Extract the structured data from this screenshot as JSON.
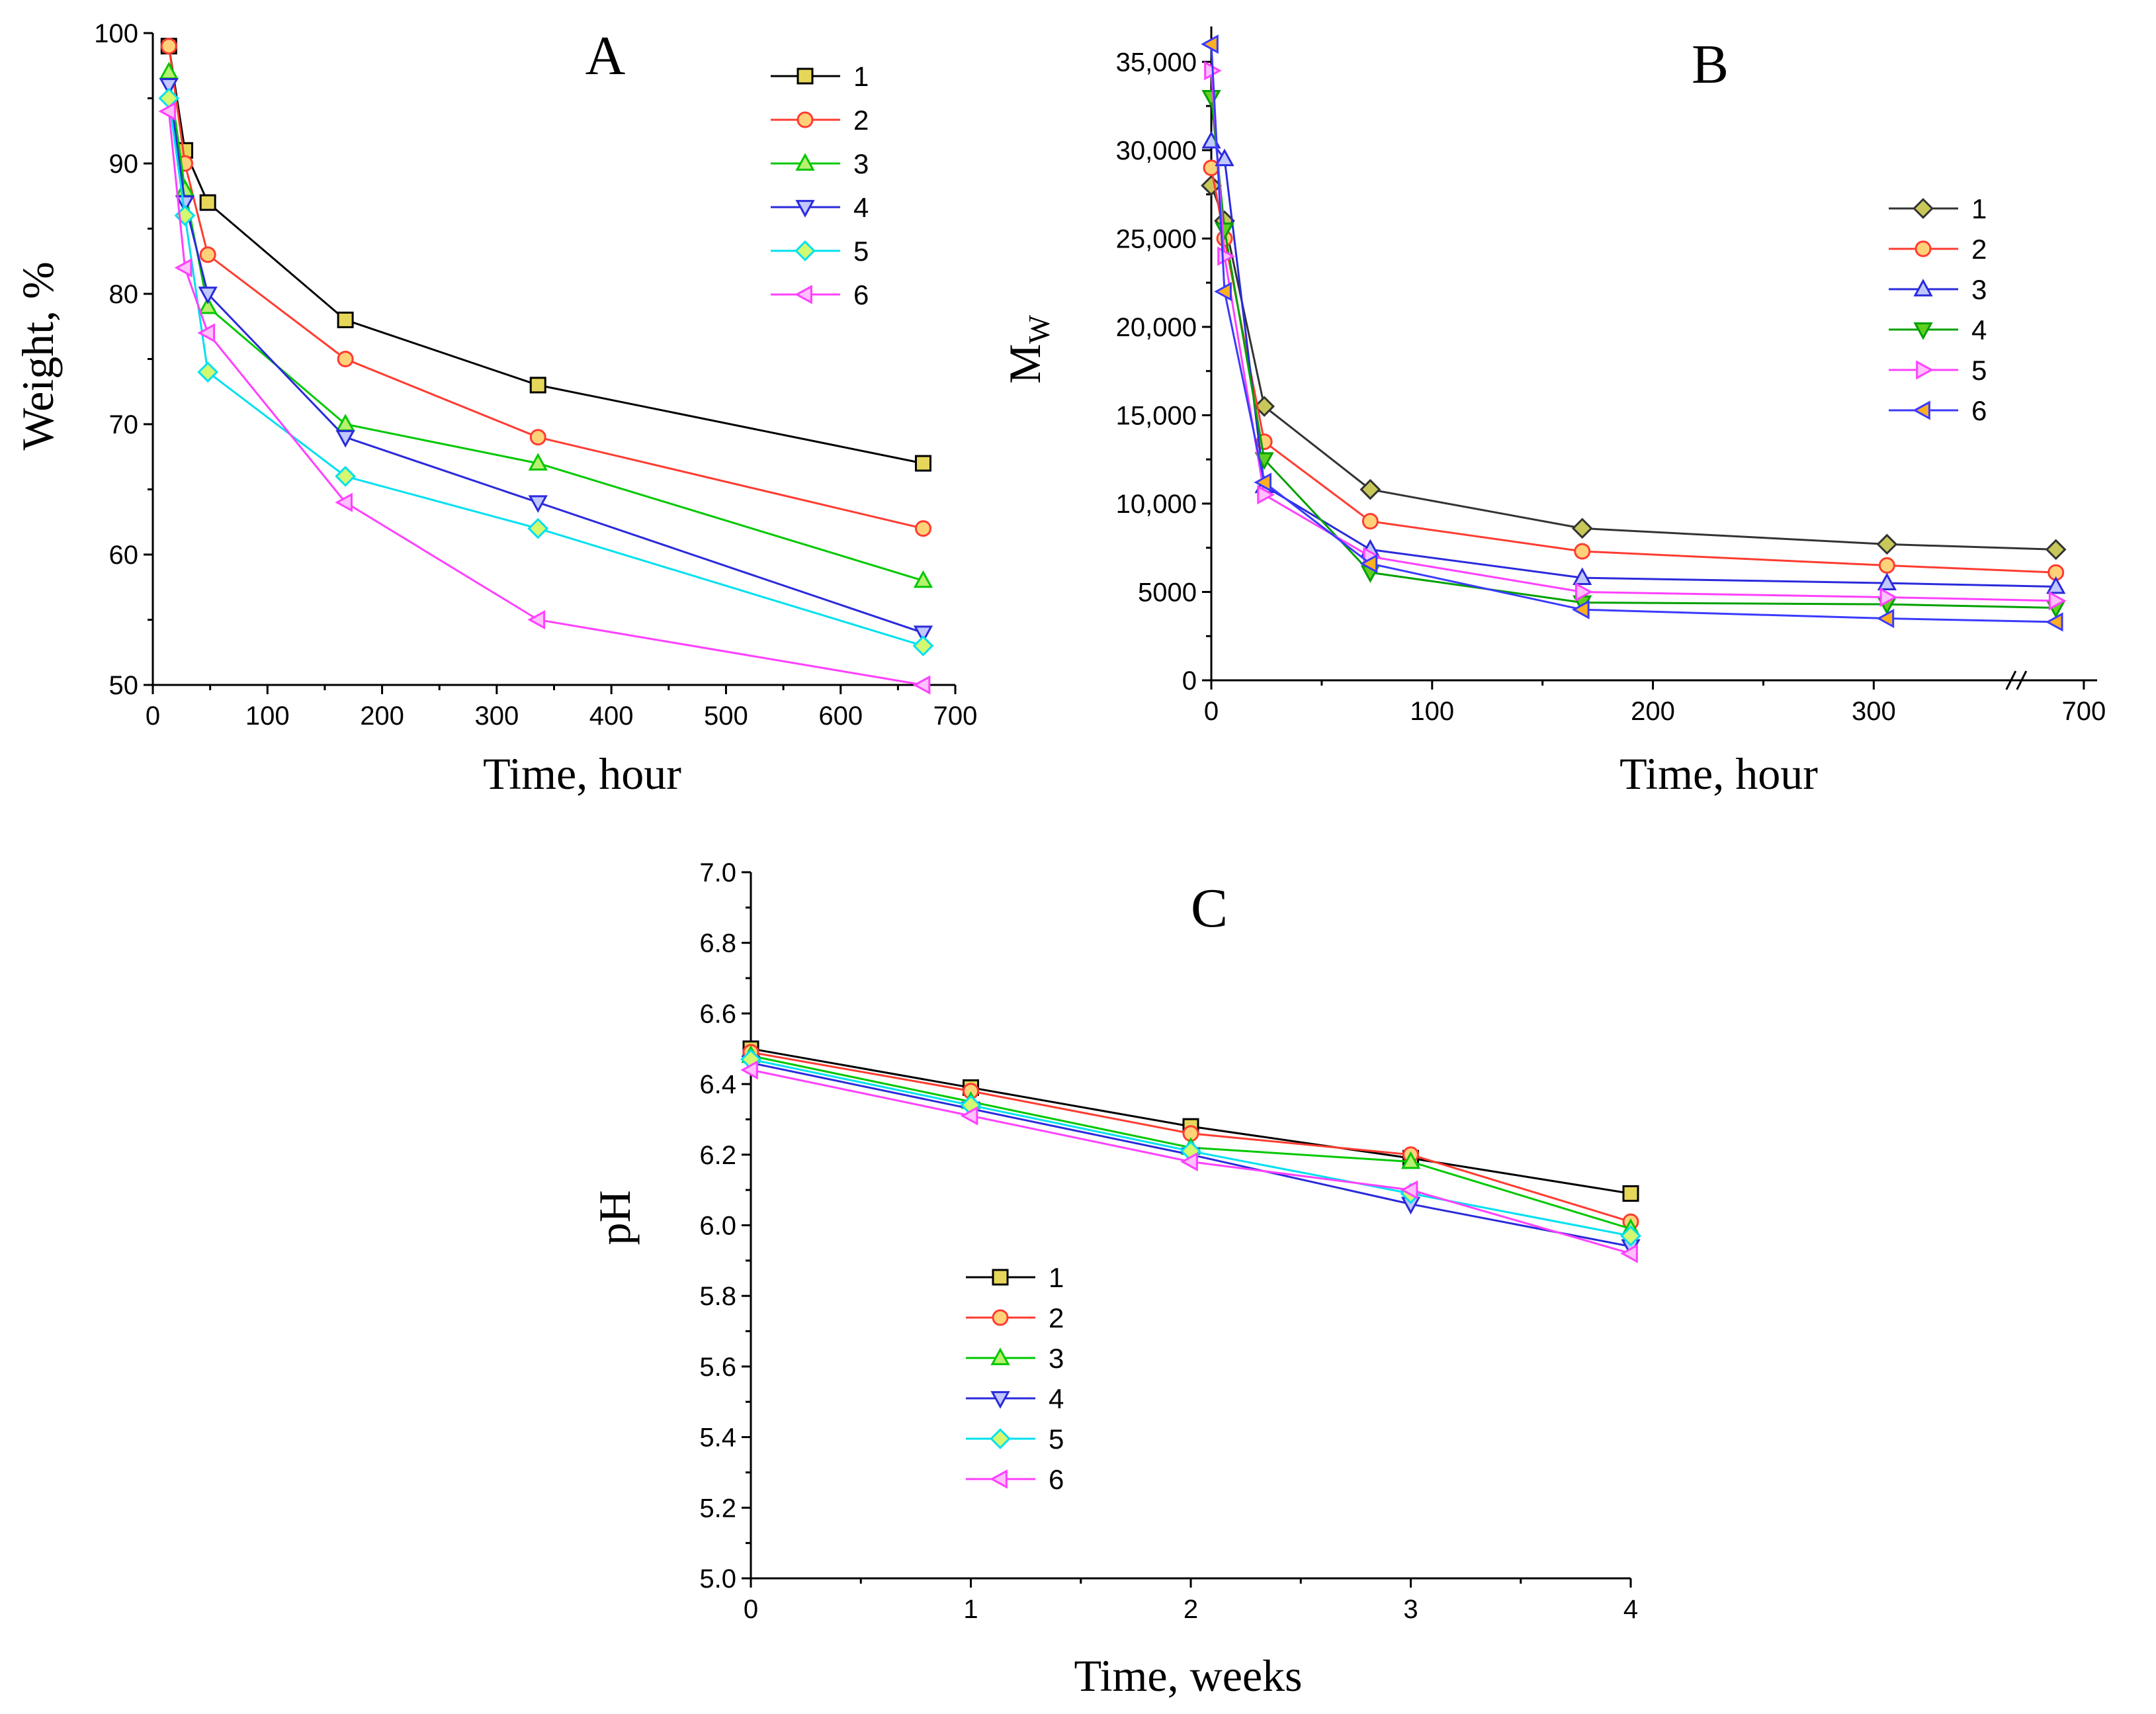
{
  "chart_data": [
    {
      "panel": "A",
      "type": "line",
      "xlabel": "Time, hour",
      "ylabel": "Weight, %",
      "xlim": [
        0,
        700
      ],
      "ylim": [
        50,
        100
      ],
      "x_ticks": [
        0,
        100,
        200,
        300,
        400,
        500,
        600,
        700
      ],
      "y_ticks": [
        50,
        60,
        70,
        80,
        90,
        100
      ],
      "x_tick_labels": [
        "0",
        "100",
        "200",
        "300",
        "400",
        "500",
        "600",
        "700"
      ],
      "y_tick_labels": [
        "50",
        "60",
        "70",
        "80",
        "90",
        "100"
      ],
      "legend_position": "top-right",
      "series": [
        {
          "name": "1",
          "color": "#000000",
          "fill": "#e6d75a",
          "marker": "square",
          "x": [
            14,
            28,
            48,
            168,
            336,
            672
          ],
          "y": [
            99,
            91,
            87,
            78,
            73,
            67
          ]
        },
        {
          "name": "2",
          "color": "#ff3b30",
          "fill": "#ffd27a",
          "marker": "circle",
          "x": [
            14,
            28,
            48,
            168,
            336,
            672
          ],
          "y": [
            99,
            90,
            83,
            75,
            69,
            62
          ]
        },
        {
          "name": "3",
          "color": "#00c800",
          "fill": "#b8f070",
          "marker": "triangle-up",
          "x": [
            14,
            28,
            48,
            168,
            336,
            672
          ],
          "y": [
            97,
            88,
            79,
            70,
            67,
            58
          ]
        },
        {
          "name": "4",
          "color": "#2a2adc",
          "fill": "#c0c8ff",
          "marker": "triangle-down",
          "x": [
            14,
            28,
            48,
            168,
            336,
            672
          ],
          "y": [
            96,
            87,
            80,
            69,
            64,
            54
          ]
        },
        {
          "name": "5",
          "color": "#00e0f0",
          "fill": "#d4f870",
          "marker": "diamond",
          "x": [
            14,
            28,
            48,
            168,
            336,
            672
          ],
          "y": [
            95,
            86,
            74,
            66,
            62,
            53
          ]
        },
        {
          "name": "6",
          "color": "#ff40ff",
          "fill": "#ffc0ff",
          "marker": "triangle-left",
          "x": [
            14,
            28,
            48,
            168,
            336,
            672
          ],
          "y": [
            94,
            82,
            77,
            64,
            55,
            50
          ]
        }
      ]
    },
    {
      "panel": "B",
      "type": "line",
      "xlabel": "Time, hour",
      "ylabel": "Mw",
      "xlim": [
        0,
        700
      ],
      "ylim": [
        0,
        37000
      ],
      "x_ticks": [
        0,
        100,
        200,
        300,
        700
      ],
      "y_ticks": [
        0,
        5000,
        10000,
        15000,
        20000,
        25000,
        30000,
        35000
      ],
      "x_tick_labels": [
        "0",
        "100",
        "200",
        "300",
        "700"
      ],
      "y_tick_labels": [
        "0",
        "5000",
        "10,000",
        "15,000",
        "20,000",
        "25,000",
        "30,000",
        "35,000"
      ],
      "axis_break": "between 300 and 700",
      "legend_position": "top-right",
      "series": [
        {
          "name": "1",
          "color": "#333333",
          "fill": "#c8c85a",
          "marker": "diamond",
          "x": [
            0,
            6,
            24,
            72,
            168,
            336,
            672
          ],
          "y": [
            28000,
            26000,
            15500,
            10800,
            8600,
            7700,
            7400
          ]
        },
        {
          "name": "2",
          "color": "#ff3b30",
          "fill": "#ffd27a",
          "marker": "circle",
          "x": [
            0,
            6,
            24,
            72,
            168,
            336,
            672
          ],
          "y": [
            29000,
            25000,
            13500,
            9000,
            7300,
            6500,
            6100
          ]
        },
        {
          "name": "3",
          "color": "#2a2adc",
          "fill": "#c0c8ff",
          "marker": "triangle-up",
          "x": [
            0,
            6,
            24,
            72,
            168,
            336,
            672
          ],
          "y": [
            30500,
            29500,
            11000,
            7400,
            5800,
            5500,
            5300
          ]
        },
        {
          "name": "4",
          "color": "#00a000",
          "fill": "#60d020",
          "marker": "triangle-down",
          "x": [
            0,
            6,
            24,
            72,
            168,
            336,
            672
          ],
          "y": [
            33000,
            25500,
            12500,
            6100,
            4400,
            4300,
            4100
          ]
        },
        {
          "name": "5",
          "color": "#ff40ff",
          "fill": "#ffc0ff",
          "marker": "triangle-right",
          "x": [
            0,
            6,
            24,
            72,
            168,
            336,
            672
          ],
          "y": [
            34500,
            24000,
            10500,
            7000,
            5000,
            4700,
            4500
          ]
        },
        {
          "name": "6",
          "color": "#3a3aff",
          "fill": "#ffb020",
          "marker": "triangle-left",
          "x": [
            0,
            6,
            24,
            72,
            168,
            336,
            672
          ],
          "y": [
            36000,
            22000,
            11200,
            6600,
            4000,
            3500,
            3300
          ]
        }
      ]
    },
    {
      "panel": "C",
      "type": "line",
      "xlabel": "Time, weeks",
      "ylabel": "pH",
      "xlim": [
        0,
        4
      ],
      "ylim": [
        5.0,
        7.0
      ],
      "x_ticks": [
        0,
        1,
        2,
        3,
        4
      ],
      "y_ticks": [
        5.0,
        5.2,
        5.4,
        5.6,
        5.8,
        6.0,
        6.2,
        6.4,
        6.6,
        6.8,
        7.0
      ],
      "x_tick_labels": [
        "0",
        "1",
        "2",
        "3",
        "4"
      ],
      "y_tick_labels": [
        "5.0",
        "5.2",
        "5.4",
        "5.6",
        "5.8",
        "6.0",
        "6.2",
        "6.4",
        "6.6",
        "6.8",
        "7.0"
      ],
      "legend_position": "bottom-left",
      "series": [
        {
          "name": "1",
          "color": "#000000",
          "fill": "#e6d75a",
          "marker": "square",
          "x": [
            0,
            1,
            2,
            3,
            4
          ],
          "y": [
            6.5,
            6.39,
            6.28,
            6.19,
            6.09
          ]
        },
        {
          "name": "2",
          "color": "#ff3b30",
          "fill": "#ffd27a",
          "marker": "circle",
          "x": [
            0,
            1,
            2,
            3,
            4
          ],
          "y": [
            6.49,
            6.38,
            6.26,
            6.2,
            6.01
          ]
        },
        {
          "name": "3",
          "color": "#00c800",
          "fill": "#b8f070",
          "marker": "triangle-up",
          "x": [
            0,
            1,
            2,
            3,
            4
          ],
          "y": [
            6.48,
            6.35,
            6.22,
            6.18,
            5.99
          ]
        },
        {
          "name": "4",
          "color": "#2a2adc",
          "fill": "#c0c8ff",
          "marker": "triangle-down",
          "x": [
            0,
            1,
            2,
            3,
            4
          ],
          "y": [
            6.46,
            6.33,
            6.2,
            6.06,
            5.94
          ]
        },
        {
          "name": "5",
          "color": "#00e0f0",
          "fill": "#d4f870",
          "marker": "diamond",
          "x": [
            0,
            1,
            2,
            3,
            4
          ],
          "y": [
            6.47,
            6.34,
            6.21,
            6.09,
            5.97
          ]
        },
        {
          "name": "6",
          "color": "#ff40ff",
          "fill": "#ffc0ff",
          "marker": "triangle-left",
          "x": [
            0,
            1,
            2,
            3,
            4
          ],
          "y": [
            6.44,
            6.31,
            6.18,
            6.1,
            5.92
          ]
        }
      ]
    }
  ]
}
